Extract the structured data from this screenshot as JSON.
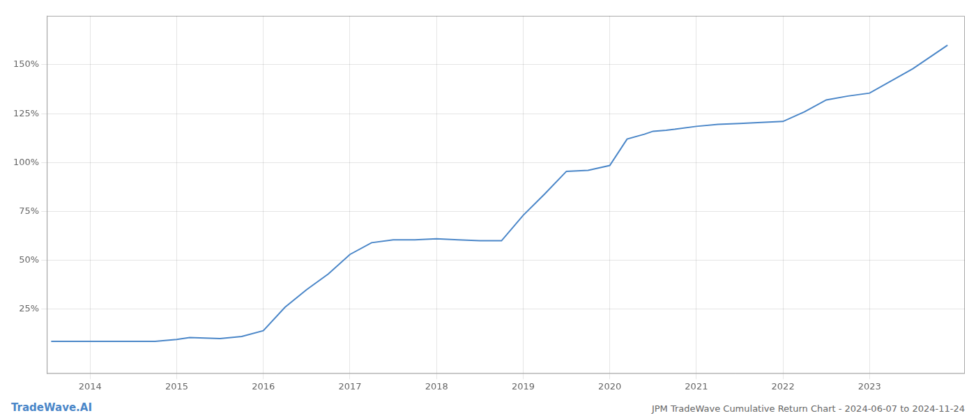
{
  "chart_data": {
    "type": "line",
    "title": "JPM TradeWave Cumulative Return Chart - 2024-06-07 to 2024-11-24",
    "annotations": [
      "TradeWave.AI"
    ],
    "color": "#4a86c8",
    "x": [
      2013.55,
      2013.75,
      2014.0,
      2014.25,
      2014.5,
      2014.75,
      2015.0,
      2015.15,
      2015.5,
      2015.75,
      2016.0,
      2016.25,
      2016.5,
      2016.75,
      2017.0,
      2017.25,
      2017.5,
      2017.75,
      2018.0,
      2018.25,
      2018.5,
      2018.75,
      2019.0,
      2019.25,
      2019.5,
      2019.75,
      2020.0,
      2020.2,
      2020.4,
      2020.5,
      2020.65,
      2020.75,
      2021.0,
      2021.25,
      2021.5,
      2021.75,
      2022.0,
      2022.25,
      2022.5,
      2022.75,
      2023.0,
      2023.5,
      2023.9
    ],
    "values": [
      8.5,
      8.5,
      8.5,
      8.5,
      8.5,
      8.5,
      9.5,
      10.5,
      10.0,
      11.0,
      14.0,
      26.0,
      35.0,
      43.0,
      53.0,
      59.0,
      60.5,
      60.5,
      61.0,
      60.5,
      60.0,
      60.0,
      73.0,
      84.0,
      95.5,
      96.0,
      98.5,
      112.0,
      114.5,
      116.0,
      116.5,
      117.0,
      118.5,
      119.5,
      120.0,
      120.5,
      121.0,
      126.0,
      132.0,
      134.0,
      135.5,
      148.0,
      160.0
    ],
    "xlim": [
      2013.5,
      2024.1
    ],
    "xticks": [
      2014,
      2015,
      2016,
      2017,
      2018,
      2019,
      2020,
      2021,
      2022,
      2023
    ],
    "ylim": [
      -8,
      175
    ],
    "yticks": [
      {
        "value": 25,
        "label": "25%"
      },
      {
        "value": 50,
        "label": "50%"
      },
      {
        "value": 75,
        "label": "75%"
      },
      {
        "value": 100,
        "label": "100%"
      },
      {
        "value": 125,
        "label": "125%"
      },
      {
        "value": 150,
        "label": "150%"
      }
    ],
    "grid": true
  }
}
